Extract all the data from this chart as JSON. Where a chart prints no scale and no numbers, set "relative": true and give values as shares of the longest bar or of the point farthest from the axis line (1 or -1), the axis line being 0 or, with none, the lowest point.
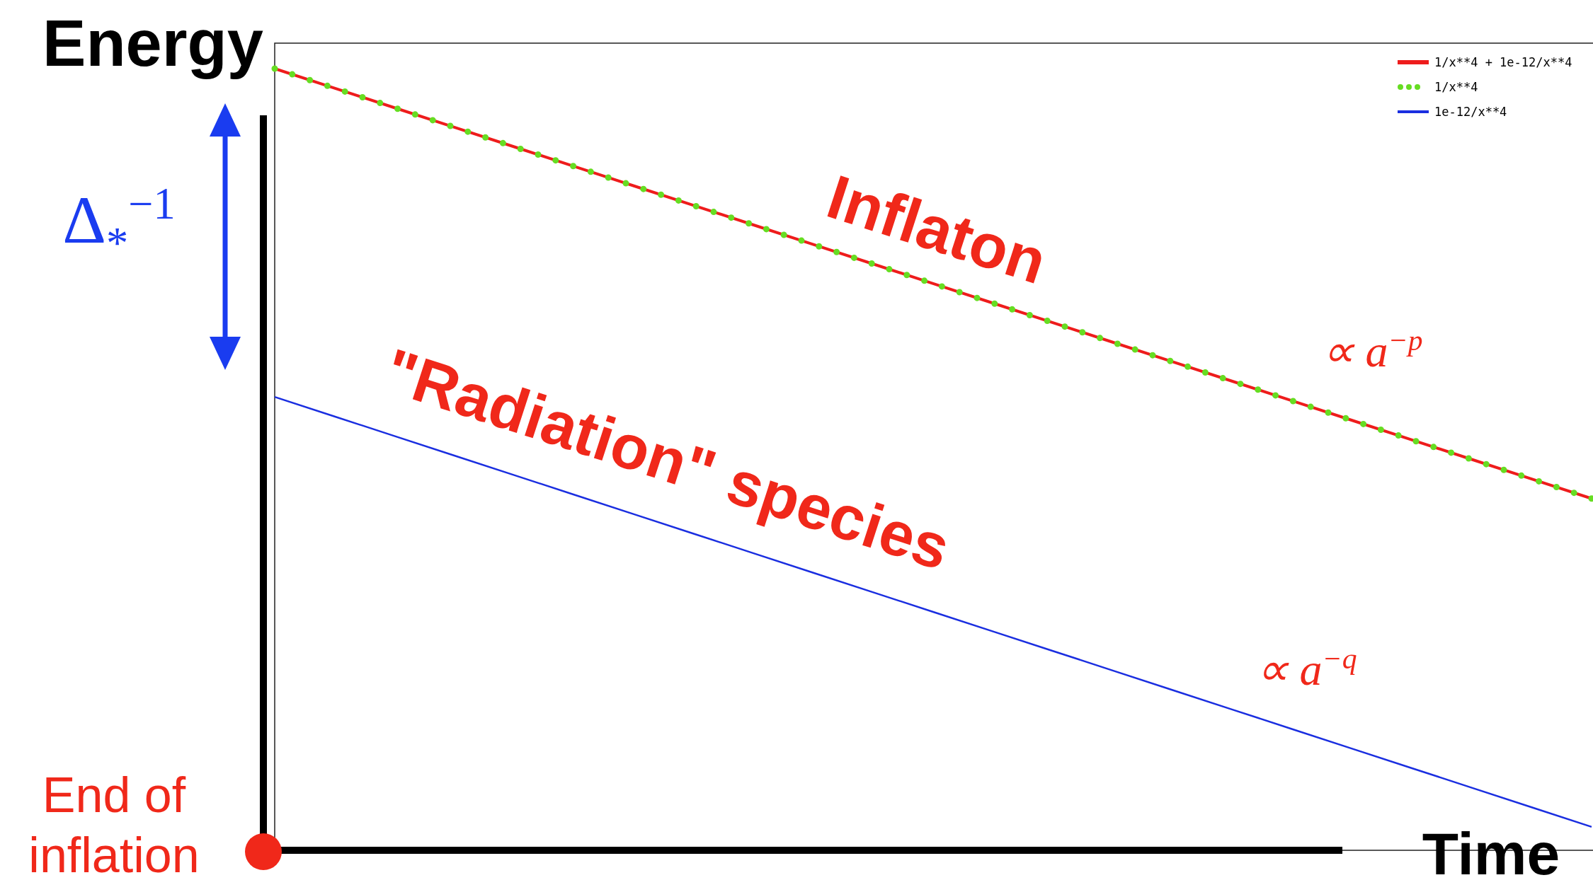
{
  "chart_data": {
    "type": "line",
    "relative": true,
    "xlabel": "Time",
    "ylabel": "Energy",
    "categories": [
      null,
      null,
      null,
      null,
      null,
      null,
      null,
      null,
      null,
      null,
      null,
      null,
      null,
      null,
      null,
      null,
      null,
      null,
      null,
      null,
      null,
      null,
      null
    ],
    "series": [
      {
        "name": "1/x**4 + 1e-12/x**4",
        "color": "#ee1c1c",
        "values": [
          1,
          0.975,
          0.95,
          0.925,
          0.9,
          0.875,
          0.85,
          0.825,
          0.8,
          0.775,
          0.75,
          0.725,
          0.7,
          0.675,
          0.65,
          0.625,
          0.6,
          0.575,
          0.55,
          0.525,
          0.5,
          0.475,
          0.45
        ]
      },
      {
        "name": "1/x**4",
        "color": "#66dd22",
        "line_style": "dotted",
        "values": [
          1,
          0.975,
          0.95,
          0.925,
          0.9,
          0.875,
          0.85,
          0.825,
          0.8,
          0.775,
          0.75,
          0.725,
          0.7,
          0.675,
          0.65,
          0.625,
          0.6,
          0.575,
          0.55,
          0.525,
          0.5,
          0.475,
          0.45
        ]
      },
      {
        "name": "1e-12/x**4",
        "color": "#1a2ee0",
        "values": [
          0.58,
          0.555,
          0.53,
          0.505,
          0.48,
          0.455,
          0.43,
          0.405,
          0.38,
          0.355,
          0.33,
          0.305,
          0.28,
          0.255,
          0.23,
          0.205,
          0.18,
          0.155,
          0.13,
          0.105,
          0.08,
          0.055,
          0.03
        ]
      }
    ],
    "legend": "top right",
    "annotations": [
      "Inflaton",
      "\"Radiation\" species",
      "∝ a$^{−p}$",
      "∝ a$^{−q}$",
      "Δ$_{*}$$^{−1}$",
      "End of inflation"
    ]
  }
}
